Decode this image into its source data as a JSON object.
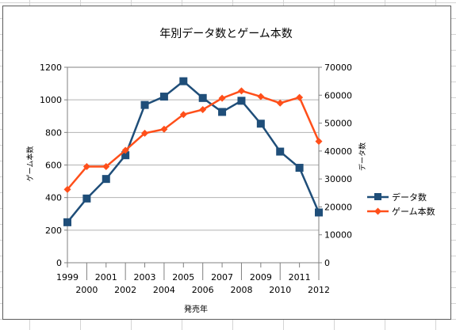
{
  "chart_data": {
    "type": "line",
    "title": "年別データ数とゲーム本数",
    "xlabel": "発売年",
    "ylabel": "ゲーム本数",
    "y2label": "データ数",
    "categories": [
      "1999",
      "2000",
      "2001",
      "2002",
      "2003",
      "2004",
      "2005",
      "2006",
      "2007",
      "2008",
      "2009",
      "2010",
      "2011",
      "2012"
    ],
    "ylim": [
      0,
      1200
    ],
    "y_ticks": [
      "0",
      "200",
      "400",
      "600",
      "800",
      "1000",
      "1200"
    ],
    "y2lim": [
      0,
      70000
    ],
    "y2_ticks": [
      "0",
      "10000",
      "20000",
      "30000",
      "40000",
      "50000",
      "60000",
      "70000"
    ],
    "grid": "horizontal major",
    "legend": "right",
    "series": [
      {
        "name": "データ数",
        "axis": "right",
        "color": "#1f4e79",
        "marker": "square",
        "values": [
          14500,
          23000,
          30000,
          38500,
          56500,
          59500,
          65000,
          59000,
          54000,
          58000,
          49800,
          39800,
          34000,
          18000
        ]
      },
      {
        "name": "ゲーム本数",
        "axis": "left",
        "color": "#ff4f1a",
        "marker": "diamond",
        "values": [
          450,
          590,
          590,
          690,
          795,
          820,
          910,
          940,
          1010,
          1055,
          1020,
          980,
          1015,
          745
        ]
      }
    ]
  }
}
